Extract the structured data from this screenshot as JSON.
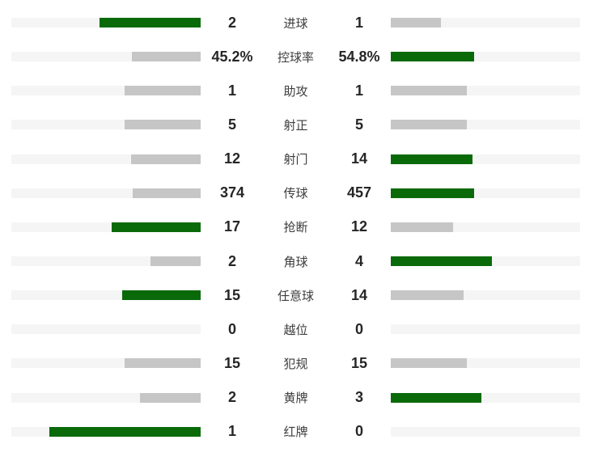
{
  "colors": {
    "green": "#0a6a0a",
    "gray": "#c6c6c6",
    "track": "#f5f5f5",
    "value_text": "#262626",
    "label_text": "#3d3d3d",
    "background": "#ffffff"
  },
  "chart_data": {
    "type": "bar",
    "subtype": "paired-horizontal-comparison",
    "title": "",
    "categories": [
      "进球",
      "控球率",
      "助攻",
      "射正",
      "射门",
      "传球",
      "抢断",
      "角球",
      "任意球",
      "越位",
      "犯规",
      "黄牌",
      "红牌"
    ],
    "series": [
      {
        "name": "left-team",
        "values": [
          2,
          45.2,
          1,
          5,
          12,
          374,
          17,
          2,
          15,
          0,
          15,
          2,
          1
        ],
        "labels": [
          "2",
          "45.2%",
          "1",
          "5",
          "12",
          "374",
          "17",
          "2",
          "15",
          "0",
          "15",
          "2",
          "1"
        ]
      },
      {
        "name": "right-team",
        "values": [
          1,
          54.8,
          1,
          5,
          14,
          457,
          12,
          4,
          14,
          0,
          15,
          3,
          0
        ],
        "labels": [
          "1",
          "54.8%",
          "1",
          "5",
          "14",
          "457",
          "12",
          "4",
          "14",
          "0",
          "15",
          "3",
          "0"
        ]
      }
    ],
    "legend_position": "none",
    "grid": false,
    "bar_rule": "fill width = value/(left+right) * 80% of track width; higher value colored green, lower or equal colored gray; zero value has no fill",
    "highlight_color": "#0a6a0a",
    "neutral_color": "#c6c6c6"
  },
  "rows": [
    {
      "label": "进球",
      "left": "2",
      "right": "1",
      "left_value": 2,
      "right_value": 1
    },
    {
      "label": "控球率",
      "left": "45.2%",
      "right": "54.8%",
      "left_value": 45.2,
      "right_value": 54.8
    },
    {
      "label": "助攻",
      "left": "1",
      "right": "1",
      "left_value": 1,
      "right_value": 1
    },
    {
      "label": "射正",
      "left": "5",
      "right": "5",
      "left_value": 5,
      "right_value": 5
    },
    {
      "label": "射门",
      "left": "12",
      "right": "14",
      "left_value": 12,
      "right_value": 14
    },
    {
      "label": "传球",
      "left": "374",
      "right": "457",
      "left_value": 374,
      "right_value": 457
    },
    {
      "label": "抢断",
      "left": "17",
      "right": "12",
      "left_value": 17,
      "right_value": 12
    },
    {
      "label": "角球",
      "left": "2",
      "right": "4",
      "left_value": 2,
      "right_value": 4
    },
    {
      "label": "任意球",
      "left": "15",
      "right": "14",
      "left_value": 15,
      "right_value": 14
    },
    {
      "label": "越位",
      "left": "0",
      "right": "0",
      "left_value": 0,
      "right_value": 0
    },
    {
      "label": "犯规",
      "left": "15",
      "right": "15",
      "left_value": 15,
      "right_value": 15
    },
    {
      "label": "黄牌",
      "left": "2",
      "right": "3",
      "left_value": 2,
      "right_value": 3
    },
    {
      "label": "红牌",
      "left": "1",
      "right": "0",
      "left_value": 1,
      "right_value": 0
    }
  ]
}
